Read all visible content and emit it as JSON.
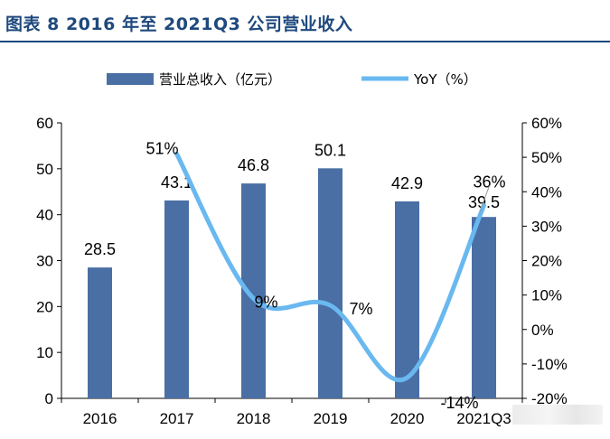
{
  "title": "图表 8 2016 年至 2021Q3 公司营业收入",
  "chart_data": {
    "type": "bar",
    "categories": [
      "2016",
      "2017",
      "2018",
      "2019",
      "2020",
      "2021Q3"
    ],
    "series": [
      {
        "name": "营业总收入（亿元）",
        "type": "bar",
        "axis": "left",
        "values": [
          28.5,
          43.1,
          46.8,
          50.1,
          42.9,
          39.5
        ],
        "labels": [
          "28.5",
          "43.1",
          "46.8",
          "50.1",
          "42.9",
          "39.5"
        ]
      },
      {
        "name": "YoY（%）",
        "type": "line",
        "axis": "right",
        "values": [
          null,
          51,
          9,
          7,
          -14,
          36
        ],
        "labels": [
          "",
          "51%",
          "9%",
          "7%",
          "-14%",
          "36%"
        ]
      }
    ],
    "y_left": {
      "min": 0,
      "max": 60,
      "ticks": [
        "0",
        "10",
        "20",
        "30",
        "40",
        "50",
        "60"
      ]
    },
    "y_right": {
      "min": -20,
      "max": 60,
      "ticks": [
        "-20%",
        "-10%",
        "0%",
        "10%",
        "20%",
        "30%",
        "40%",
        "50%",
        "60%"
      ]
    },
    "legend_position": "top",
    "grid": false,
    "colors": {
      "bar": "#4a6fa5",
      "line": "#6ab8f0",
      "title": "#1f497d"
    }
  }
}
